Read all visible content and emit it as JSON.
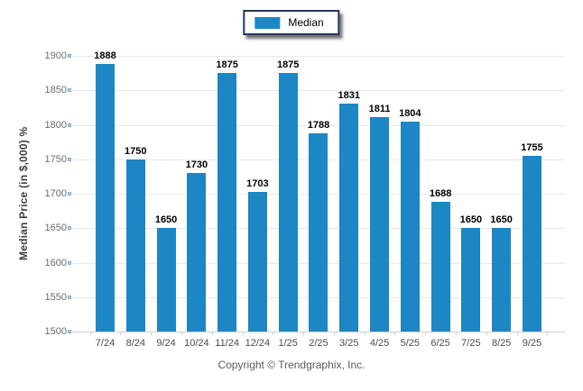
{
  "legend": {
    "label": "Median",
    "swatch_color": "#1d86c4"
  },
  "footer": {
    "copyright": "Copyright © Trendgraphix, Inc."
  },
  "chart_data": {
    "type": "bar",
    "title": "",
    "categories": [
      "7/24",
      "8/24",
      "9/24",
      "10/24",
      "11/24",
      "12/24",
      "1/25",
      "2/25",
      "3/25",
      "4/25",
      "5/25",
      "6/25",
      "7/25",
      "8/25",
      "9/25"
    ],
    "series": [
      {
        "name": "Median",
        "values": [
          1888,
          1750,
          1650,
          1730,
          1875,
          1703,
          1875,
          1788,
          1831,
          1811,
          1804,
          1688,
          1650,
          1650,
          1755
        ]
      }
    ],
    "xlabel": "",
    "ylabel": "Median Price (in $,000) %",
    "ylim": [
      1500,
      1900
    ],
    "yticks": [
      1500,
      1550,
      1600,
      1650,
      1700,
      1750,
      1800,
      1850,
      1900
    ],
    "grid": true,
    "legend_position": "top-center",
    "bar_color": "#1d86c4",
    "value_labels_shown": true
  }
}
